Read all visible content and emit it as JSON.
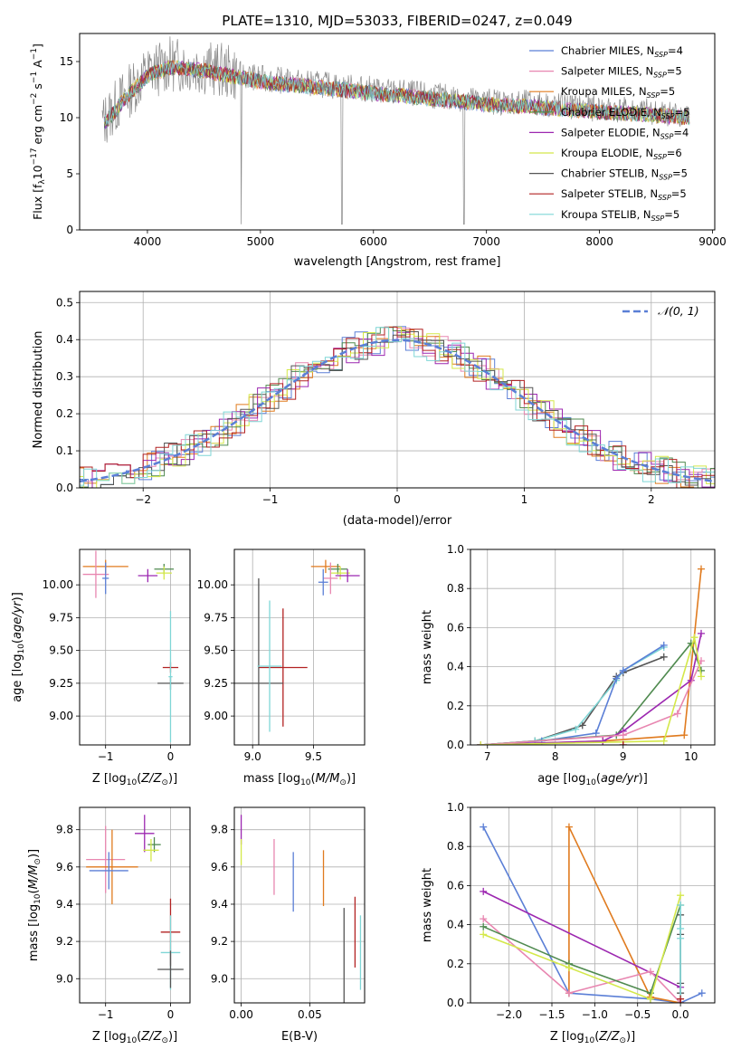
{
  "chart_data": [
    {
      "id": "spectrum",
      "type": "line",
      "title": "PLATE=1310, MJD=53033, FIBERID=0247, z=0.049",
      "xlabel": "wavelength [Angstrom, rest frame]",
      "ylabel": "Flux [f_λ 10^-17 erg cm^-2 s^-1 A^-1]",
      "xlim": [
        3400,
        9020
      ],
      "ylim": [
        0,
        17.5
      ],
      "xticks": [
        "4000",
        "5000",
        "6000",
        "7000",
        "8000",
        "9000"
      ],
      "yticks": [
        "0",
        "5",
        "10",
        "15"
      ],
      "legend_position": "upper right",
      "legend": [
        {
          "label": "Chabrier MILES, N_SSP=4",
          "color": "#5b7fd6"
        },
        {
          "label": "Salpeter MILES, N_SSP=5",
          "color": "#e886b0"
        },
        {
          "label": "Kroupa MILES, N_SSP=5",
          "color": "#e07b1f"
        },
        {
          "label": "Chabrier ELODIE, N_SSP=5",
          "color": "#4f8a4f"
        },
        {
          "label": "Salpeter ELODIE, N_SSP=4",
          "color": "#9c27b0"
        },
        {
          "label": "Kroupa ELODIE, N_SSP=6",
          "color": "#d4e84a"
        },
        {
          "label": "Chabrier STELIB, N_SSP=5",
          "color": "#555555"
        },
        {
          "label": "Salpeter STELIB, N_SSP=5",
          "color": "#b22222"
        },
        {
          "label": "Kroupa STELIB, N_SSP=5",
          "color": "#7fd6d6"
        }
      ],
      "approx_continuum": {
        "x": [
          3600,
          3800,
          4000,
          4200,
          4500,
          5000,
          5500,
          6000,
          6500,
          7000,
          7500,
          8000,
          8500,
          8800
        ],
        "y": [
          9.5,
          12.0,
          14.0,
          14.8,
          14.5,
          13.5,
          13.0,
          12.5,
          12.0,
          11.5,
          11.2,
          10.8,
          10.5,
          10.3
        ]
      }
    },
    {
      "id": "residuals",
      "type": "step",
      "xlabel": "(data-model)/error",
      "ylabel": "Normed distribution",
      "xlim": [
        -2.5,
        2.5
      ],
      "ylim": [
        0,
        0.53
      ],
      "xticks": [
        "−2",
        "−1",
        "0",
        "1",
        "2"
      ],
      "yticks": [
        "0.0",
        "0.1",
        "0.2",
        "0.3",
        "0.4",
        "0.5"
      ],
      "reference_label": "𝒩(0, 1)",
      "reference_color": "#5b7fd6"
    },
    {
      "id": "z_age",
      "type": "errorbar",
      "xlabel": "Z [log10(Z/Z⊙)]",
      "ylabel": "age  [log10(age/yr)]",
      "xlim": [
        -1.4,
        0.3
      ],
      "ylim": [
        8.78,
        10.27
      ],
      "xticks": [
        {
          "v": -1,
          "t": "−1"
        },
        {
          "v": 0,
          "t": "0"
        }
      ],
      "yticks": [
        {
          "v": 9.0,
          "t": "9.00"
        },
        {
          "v": 9.25,
          "t": "9.25"
        },
        {
          "v": 9.5,
          "t": "9.50"
        },
        {
          "v": 9.75,
          "t": "9.75"
        },
        {
          "v": 10.0,
          "t": "10.00"
        }
      ],
      "points": [
        {
          "color": "#e07b1f",
          "x": -1.0,
          "xerr": 0.35,
          "y": 10.14,
          "yerr": 0.05
        },
        {
          "color": "#4f8a4f",
          "x": -0.1,
          "xerr": 0.15,
          "y": 10.12,
          "yerr": 0.04
        },
        {
          "color": "#d4e84a",
          "x": -0.1,
          "xerr": 0.12,
          "y": 10.09,
          "yerr": 0.05
        },
        {
          "color": "#9c27b0",
          "x": -0.35,
          "xerr": 0.15,
          "y": 10.07,
          "yerr": 0.05
        },
        {
          "color": "#e886b0",
          "x": -1.15,
          "xerr": 0.2,
          "y": 10.08,
          "yerr": 0.18
        },
        {
          "color": "#5b7fd6",
          "x": -1.0,
          "xerr": 0.05,
          "y": 10.05,
          "yerr": 0.12
        },
        {
          "color": "#b22222",
          "x": 0.0,
          "xerr": 0.12,
          "y": 9.37,
          "yerr": 0.04
        },
        {
          "color": "#555555",
          "x": 0.0,
          "xerr": 0.2,
          "y": 9.25,
          "yerr": 0.05
        },
        {
          "color": "#7fd6d6",
          "x": 0.0,
          "xerr": 0.03,
          "y": 9.3,
          "yerr": 0.5
        }
      ]
    },
    {
      "id": "mass_age",
      "type": "errorbar",
      "xlabel": "mass [log10(M/M⊙)]",
      "ylabel": "",
      "xlim": [
        8.85,
        9.92
      ],
      "ylim": [
        8.78,
        10.27
      ],
      "xticks": [
        {
          "v": 9.0,
          "t": "9.0"
        },
        {
          "v": 9.5,
          "t": "9.5"
        }
      ],
      "yticks": [
        {
          "v": 9.0,
          "t": "9.00"
        },
        {
          "v": 9.25,
          "t": "9.25"
        },
        {
          "v": 9.5,
          "t": "9.50"
        },
        {
          "v": 9.75,
          "t": "9.75"
        },
        {
          "v": 10.0,
          "t": "10.00"
        }
      ],
      "points": [
        {
          "color": "#e07b1f",
          "x": 9.6,
          "xerr": 0.12,
          "y": 10.14,
          "yerr": 0.05
        },
        {
          "color": "#4f8a4f",
          "x": 9.7,
          "xerr": 0.08,
          "y": 10.12,
          "yerr": 0.04
        },
        {
          "color": "#d4e84a",
          "x": 9.72,
          "xerr": 0.08,
          "y": 10.09,
          "yerr": 0.05
        },
        {
          "color": "#9c27b0",
          "x": 9.78,
          "xerr": 0.1,
          "y": 10.07,
          "yerr": 0.05
        },
        {
          "color": "#e886b0",
          "x": 9.64,
          "xerr": 0.06,
          "y": 10.05,
          "yerr": 0.12
        },
        {
          "color": "#5b7fd6",
          "x": 9.58,
          "xerr": 0.04,
          "y": 10.02,
          "yerr": 0.1
        },
        {
          "color": "#b22222",
          "x": 9.25,
          "xerr": 0.2,
          "y": 9.37,
          "yerr": 0.45
        },
        {
          "color": "#555555",
          "x": 9.05,
          "xerr": 0.2,
          "y": 9.25,
          "yerr": 0.8
        },
        {
          "color": "#7fd6d6",
          "x": 9.14,
          "xerr": 0.1,
          "y": 9.38,
          "yerr": 0.5
        }
      ]
    },
    {
      "id": "age_weight",
      "type": "line",
      "xlabel": "age  [log10(age/yr)]",
      "ylabel": "mass weight",
      "xlim": [
        6.75,
        10.35
      ],
      "ylim": [
        0,
        1.0
      ],
      "xticks": [
        {
          "v": 7,
          "t": "7"
        },
        {
          "v": 8,
          "t": "8"
        },
        {
          "v": 9,
          "t": "9"
        },
        {
          "v": 10,
          "t": "10"
        }
      ],
      "yticks": [
        {
          "v": 0,
          "t": "0.0"
        },
        {
          "v": 0.2,
          "t": "0.2"
        },
        {
          "v": 0.4,
          "t": "0.4"
        },
        {
          "v": 0.6,
          "t": "0.6"
        },
        {
          "v": 0.8,
          "t": "0.8"
        },
        {
          "v": 1.0,
          "t": "1.0"
        }
      ],
      "series": [
        {
          "color": "#555555",
          "x": [
            6.9,
            7.7,
            8.4,
            8.9,
            9.0,
            9.6
          ],
          "y": [
            0.0,
            0.02,
            0.1,
            0.35,
            0.37,
            0.45
          ]
        },
        {
          "color": "#7fd6d6",
          "x": [
            6.9,
            7.7,
            8.3,
            8.9,
            9.0,
            9.6
          ],
          "y": [
            0.0,
            0.02,
            0.08,
            0.33,
            0.38,
            0.5
          ]
        },
        {
          "color": "#5b7fd6",
          "x": [
            6.9,
            7.8,
            8.6,
            8.9,
            9.0,
            9.6
          ],
          "y": [
            0.0,
            0.02,
            0.06,
            0.34,
            0.38,
            0.51
          ]
        },
        {
          "color": "#e07b1f",
          "x": [
            6.9,
            8.7,
            9.9,
            10.15
          ],
          "y": [
            0.0,
            0.02,
            0.05,
            0.9
          ]
        },
        {
          "color": "#4f8a4f",
          "x": [
            6.9,
            8.9,
            10.0,
            10.15
          ],
          "y": [
            0.0,
            0.05,
            0.52,
            0.38
          ]
        },
        {
          "color": "#9c27b0",
          "x": [
            6.9,
            8.7,
            9.0,
            10.0,
            10.15
          ],
          "y": [
            0.0,
            0.02,
            0.07,
            0.33,
            0.57
          ]
        },
        {
          "color": "#e886b0",
          "x": [
            6.9,
            9.0,
            9.8,
            10.15
          ],
          "y": [
            0.0,
            0.05,
            0.16,
            0.43
          ]
        },
        {
          "color": "#d4e84a",
          "x": [
            6.9,
            9.6,
            10.05,
            10.15
          ],
          "y": [
            0.0,
            0.02,
            0.55,
            0.35
          ]
        },
        {
          "color": "#b22222",
          "x": [
            9.0,
            9.0
          ],
          "y": [
            0.0,
            0.0
          ]
        }
      ]
    },
    {
      "id": "z_mass",
      "type": "errorbar",
      "xlabel": "Z [log10(Z/Z⊙)]",
      "ylabel": "mass [log10(M/M⊙)]",
      "xlim": [
        -1.4,
        0.3
      ],
      "ylim": [
        8.87,
        9.92
      ],
      "xticks": [
        {
          "v": -1,
          "t": "−1"
        },
        {
          "v": 0,
          "t": "0"
        }
      ],
      "yticks": [
        {
          "v": 9.0,
          "t": "9.0"
        },
        {
          "v": 9.2,
          "t": "9.2"
        },
        {
          "v": 9.4,
          "t": "9.4"
        },
        {
          "v": 9.6,
          "t": "9.6"
        },
        {
          "v": 9.8,
          "t": "9.8"
        }
      ],
      "points": [
        {
          "color": "#9c27b0",
          "x": -0.4,
          "xerr": 0.15,
          "y": 9.78,
          "yerr": 0.1
        },
        {
          "color": "#4f8a4f",
          "x": -0.25,
          "xerr": 0.1,
          "y": 9.72,
          "yerr": 0.04
        },
        {
          "color": "#d4e84a",
          "x": -0.3,
          "xerr": 0.12,
          "y": 9.69,
          "yerr": 0.06
        },
        {
          "color": "#e886b0",
          "x": -1.0,
          "xerr": 0.3,
          "y": 9.64,
          "yerr": 0.18
        },
        {
          "color": "#e07b1f",
          "x": -0.9,
          "xerr": 0.4,
          "y": 9.6,
          "yerr": 0.2
        },
        {
          "color": "#5b7fd6",
          "x": -0.95,
          "xerr": 0.3,
          "y": 9.58,
          "yerr": 0.1
        },
        {
          "color": "#b22222",
          "x": 0.0,
          "xerr": 0.15,
          "y": 9.25,
          "yerr": 0.18
        },
        {
          "color": "#7fd6d6",
          "x": 0.0,
          "xerr": 0.15,
          "y": 9.14,
          "yerr": 0.2
        },
        {
          "color": "#555555",
          "x": 0.0,
          "xerr": 0.2,
          "y": 9.05,
          "yerr": 0.1
        }
      ]
    },
    {
      "id": "ebv_mass",
      "type": "errorbar",
      "xlabel": "E(B-V)",
      "ylabel": "",
      "xlim": [
        -0.005,
        0.09
      ],
      "ylim": [
        8.87,
        9.92
      ],
      "xticks": [
        {
          "v": 0.0,
          "t": "0.00"
        },
        {
          "v": 0.05,
          "t": "0.05"
        }
      ],
      "yticks": [
        {
          "v": 9.0,
          "t": "9.0"
        },
        {
          "v": 9.2,
          "t": "9.2"
        },
        {
          "v": 9.4,
          "t": "9.4"
        },
        {
          "v": 9.6,
          "t": "9.6"
        },
        {
          "v": 9.8,
          "t": "9.8"
        }
      ],
      "points": [
        {
          "color": "#9c27b0",
          "x": 0.0,
          "xerr": 0.0,
          "y": 9.8,
          "yerr": 0.08
        },
        {
          "color": "#d4e84a",
          "x": 0.0,
          "xerr": 0.0,
          "y": 9.68,
          "yerr": 0.07
        },
        {
          "color": "#e886b0",
          "x": 0.024,
          "xerr": 0.0,
          "y": 9.6,
          "yerr": 0.15
        },
        {
          "color": "#5b7fd6",
          "x": 0.038,
          "xerr": 0.0,
          "y": 9.52,
          "yerr": 0.16
        },
        {
          "color": "#e07b1f",
          "x": 0.06,
          "xerr": 0.0,
          "y": 9.54,
          "yerr": 0.15
        },
        {
          "color": "#555555",
          "x": 0.075,
          "xerr": 0.0,
          "y": 9.07,
          "yerr": 0.31
        },
        {
          "color": "#b22222",
          "x": 0.083,
          "xerr": 0.0,
          "y": 9.25,
          "yerr": 0.19
        },
        {
          "color": "#7fd6d6",
          "x": 0.087,
          "xerr": 0.0,
          "y": 9.14,
          "yerr": 0.2
        }
      ]
    },
    {
      "id": "z_weight",
      "type": "line",
      "xlabel": "Z [log10(Z/Z⊙)]",
      "ylabel": "mass weight",
      "xlim": [
        -2.45,
        0.4
      ],
      "ylim": [
        0,
        1.0
      ],
      "xticks": [
        {
          "v": -2.0,
          "t": "−2.0"
        },
        {
          "v": -1.5,
          "t": "−1.5"
        },
        {
          "v": -1.0,
          "t": "−1.0"
        },
        {
          "v": -0.5,
          "t": "−0.5"
        },
        {
          "v": 0.0,
          "t": "0.0"
        }
      ],
      "yticks": [
        {
          "v": 0,
          "t": "0.0"
        },
        {
          "v": 0.2,
          "t": "0.2"
        },
        {
          "v": 0.4,
          "t": "0.4"
        },
        {
          "v": 0.6,
          "t": "0.6"
        },
        {
          "v": 0.8,
          "t": "0.8"
        },
        {
          "v": 1.0,
          "t": "1.0"
        }
      ],
      "series": [
        {
          "color": "#5b7fd6",
          "x": [
            -2.3,
            -1.3,
            -0.35,
            0.0,
            0.25
          ],
          "y": [
            0.9,
            0.05,
            0.02,
            0.0,
            0.05
          ]
        },
        {
          "color": "#e07b1f",
          "x": [
            -1.3,
            -1.3,
            -0.35,
            0.0
          ],
          "y": [
            0.05,
            0.9,
            0.03,
            0.0
          ]
        },
        {
          "color": "#9c27b0",
          "x": [
            -2.3,
            0.0
          ],
          "y": [
            0.57,
            0.08
          ]
        },
        {
          "color": "#e886b0",
          "x": [
            -2.3,
            -1.3,
            -0.35,
            0.0
          ],
          "y": [
            0.43,
            0.05,
            0.16,
            0.0
          ]
        },
        {
          "color": "#4f8a4f",
          "x": [
            -2.3,
            -1.3,
            -0.35,
            0.0
          ],
          "y": [
            0.39,
            0.2,
            0.05,
            0.5
          ]
        },
        {
          "color": "#d4e84a",
          "x": [
            -2.3,
            -1.3,
            -0.35,
            0.0
          ],
          "y": [
            0.35,
            0.18,
            0.02,
            0.55
          ]
        },
        {
          "color": "#555555",
          "x": [
            0.0,
            0.0,
            0.0,
            0.0
          ],
          "y": [
            0.35,
            0.45,
            0.1,
            0.05
          ]
        },
        {
          "color": "#7fd6d6",
          "x": [
            0.0,
            0.0,
            0.0,
            0.0
          ],
          "y": [
            0.0,
            0.33,
            0.38,
            0.5
          ]
        },
        {
          "color": "#b22222",
          "x": [
            0.0,
            0.0
          ],
          "y": [
            0.0,
            0.02
          ]
        }
      ]
    }
  ]
}
